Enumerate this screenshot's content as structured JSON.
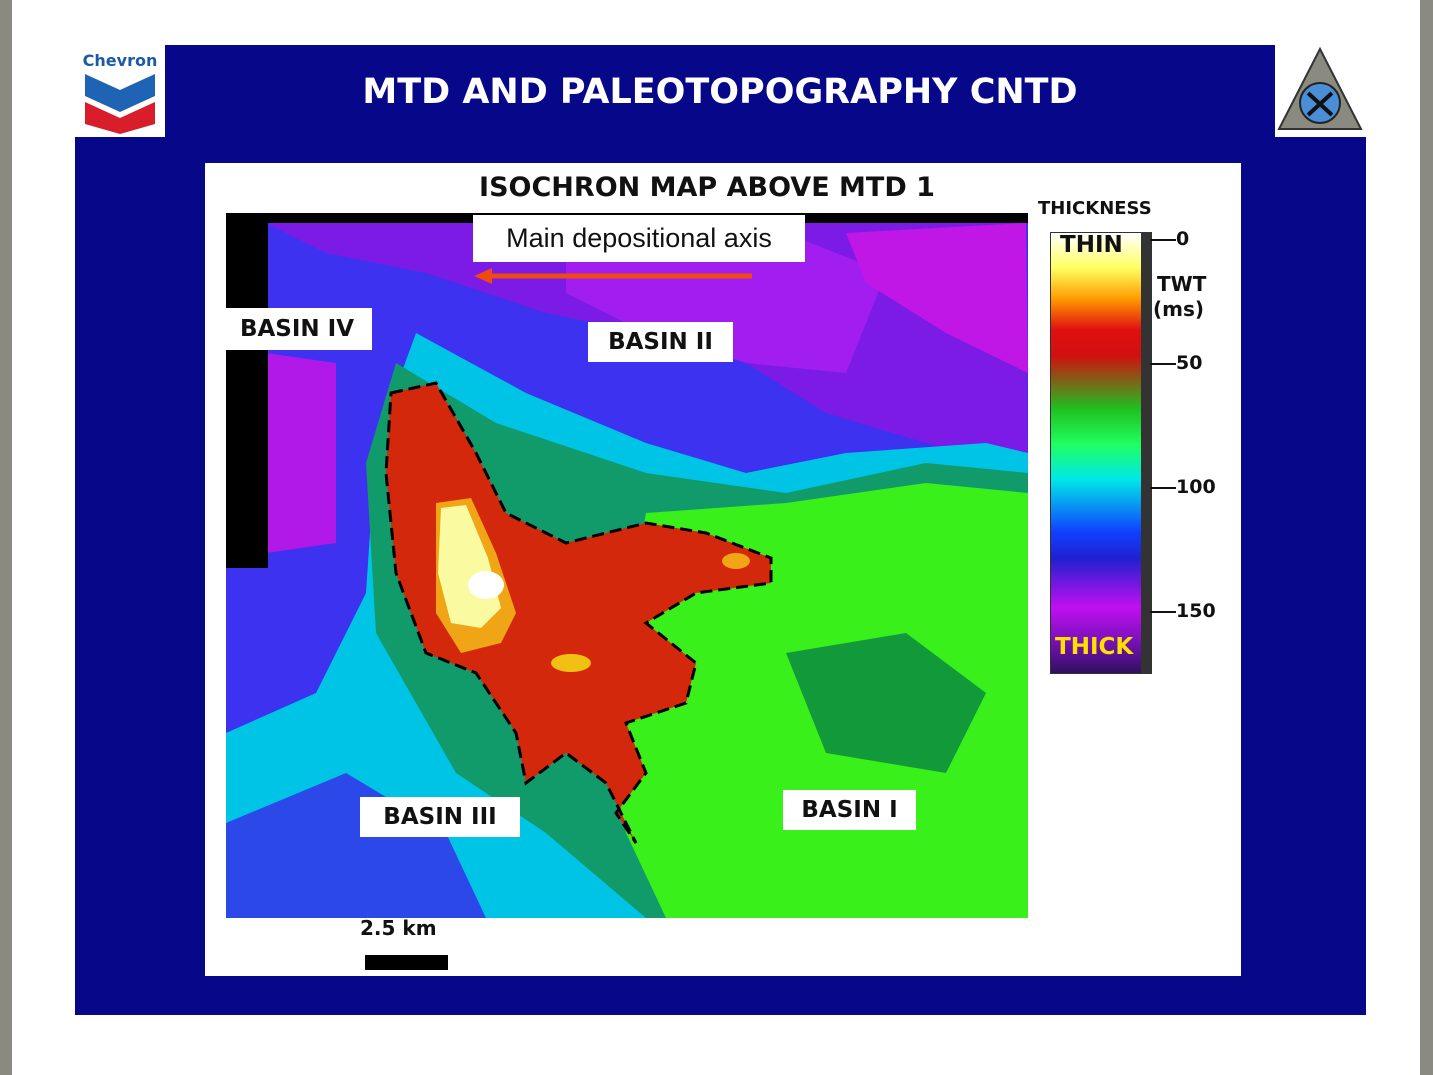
{
  "header": {
    "logo_text": "Chevron",
    "title": "MTD AND PALEOTOPOGRAPHY CNTD"
  },
  "map": {
    "title": "ISOCHRON MAP ABOVE MTD 1",
    "annotations": {
      "axis": "Main depositional axis",
      "basin_iv": "BASIN IV",
      "basin_ii": "BASIN II",
      "basin_iii": "BASIN III",
      "basin_i": "BASIN I"
    },
    "scale_label": "2.5 km"
  },
  "legend": {
    "title": "THICKNESS",
    "thin": "THIN",
    "thick": "THICK",
    "axis_label": "TWT",
    "unit": "(ms)",
    "ticks": [
      0,
      50,
      100,
      150
    ]
  }
}
